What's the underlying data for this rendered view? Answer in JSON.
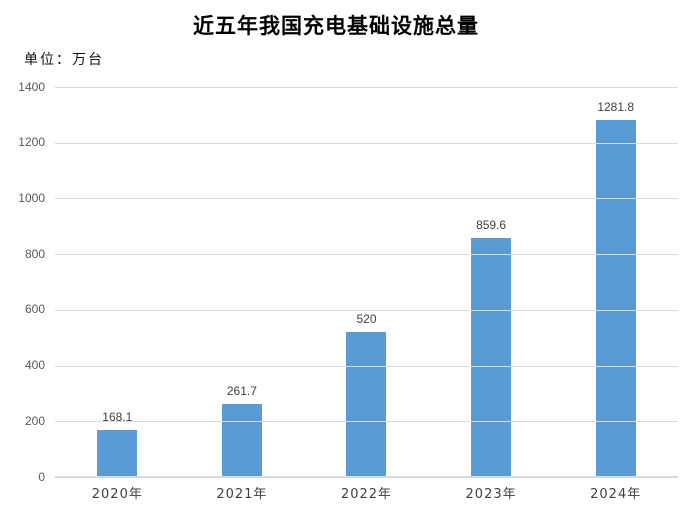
{
  "chart": {
    "title": "近五年我国充电基础设施总量",
    "unit_label": "单位：万台"
  },
  "chart_data": {
    "type": "bar",
    "title": "近五年我国充电基础设施总量",
    "subtitle": "",
    "xlabel": "",
    "ylabel": "单位：万台",
    "categories": [
      "2020年",
      "2021年",
      "2022年",
      "2023年",
      "2024年"
    ],
    "values": [
      168.1,
      261.7,
      520,
      859.6,
      1281.8
    ],
    "data_labels": [
      "168.1",
      "261.7",
      "520",
      "859.6",
      "1281.8"
    ],
    "ylim": [
      0,
      1400
    ],
    "yticks": [
      0,
      200,
      400,
      600,
      800,
      1000,
      1200,
      1400
    ],
    "grid": true,
    "legend_position": "none",
    "bar_color": "#5B9BD5",
    "gridline_color": "#D9D9D9",
    "axis_line_color": "#D9D9D9",
    "ytick_label_color": "#595959",
    "xtick_label_color": "#404040",
    "data_label_color": "#404040"
  }
}
